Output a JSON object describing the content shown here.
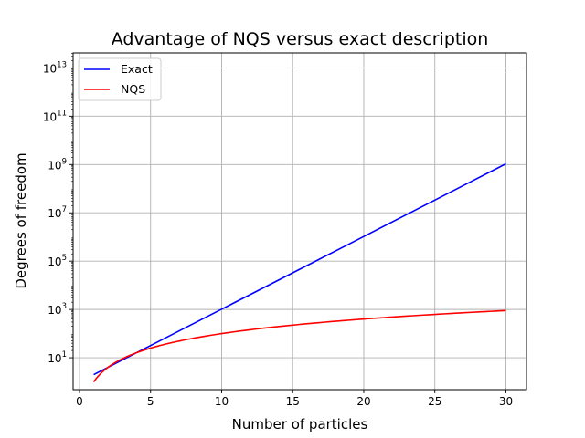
{
  "chart_data": {
    "type": "line",
    "title": "Advantage of NQS versus exact description",
    "xlabel": "Number of particles",
    "ylabel": "Degrees of freedom",
    "xlim": [
      -0.45,
      31.45
    ],
    "ylim_log10": [
      -0.32,
      13.62
    ],
    "yscale": "log",
    "grid": true,
    "legend_position": "top-left",
    "x_ticks": [
      0,
      5,
      10,
      15,
      20,
      25,
      30
    ],
    "y_ticks": [
      {
        "base": "10",
        "exp": "1"
      },
      {
        "base": "10",
        "exp": "3"
      },
      {
        "base": "10",
        "exp": "5"
      },
      {
        "base": "10",
        "exp": "7"
      },
      {
        "base": "10",
        "exp": "9"
      },
      {
        "base": "10",
        "exp": "11"
      },
      {
        "base": "10",
        "exp": "13"
      }
    ],
    "series": [
      {
        "name": "Exact",
        "color": "#0000ff",
        "x": [
          1,
          5,
          10,
          15,
          20,
          25,
          30
        ],
        "y": [
          2,
          32,
          1024,
          32768,
          1048576,
          33554432,
          1073741824
        ]
      },
      {
        "name": "NQS",
        "color": "#ff0000",
        "x": [
          1,
          1.5,
          2,
          2.5,
          3,
          4,
          5,
          6,
          7,
          8,
          10,
          12,
          15,
          18,
          20,
          22,
          25,
          28,
          30
        ],
        "y": [
          1,
          2.25,
          4,
          6.25,
          9,
          16,
          25,
          36,
          49,
          64,
          100,
          144,
          225,
          324,
          400,
          484,
          625,
          784,
          900
        ]
      }
    ]
  }
}
